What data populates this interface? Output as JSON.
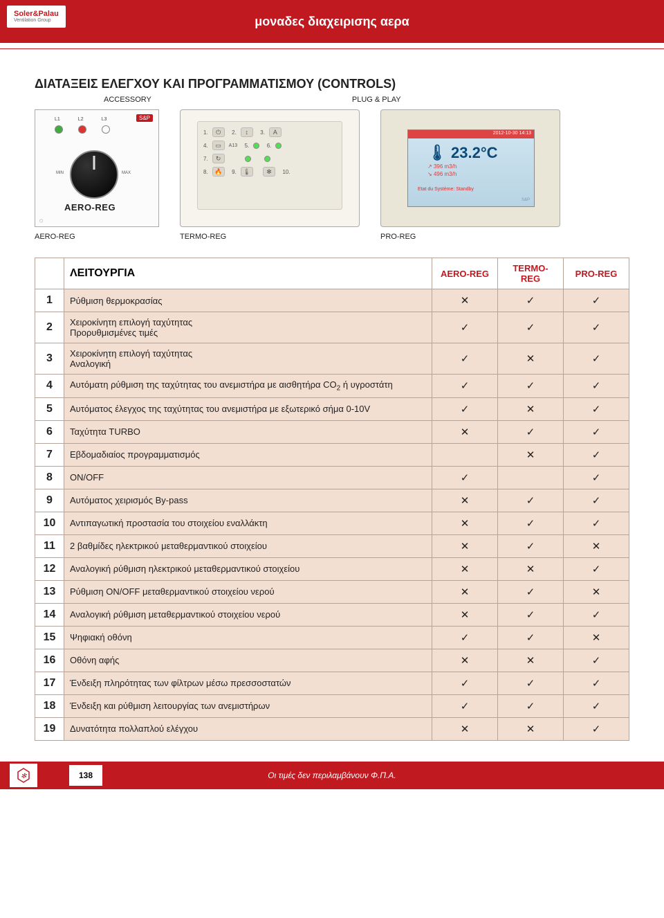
{
  "header": {
    "title": "μοναδες διαχειρισης αερα",
    "logo_line1": "Soler&Palau",
    "logo_line2": "Ventilation Group"
  },
  "section": {
    "title": "ΔΙΑΤΑΞΕΙΣ ΕΛΕΓΧΟΥ ΚΑΙ ΠΡΟΓΡΑΜΜΑΤΙΣΜΟΥ (CONTROLS)",
    "accessory_label": "ACCESSORY",
    "plugplay_label": "PLUG & PLAY"
  },
  "products": {
    "aero": {
      "label": "AERO-REG",
      "brand_text": "AERO-REG",
      "sp": "S&P",
      "leds": [
        "L1",
        "L2",
        "L3"
      ]
    },
    "termo": {
      "label": "TERMO-REG"
    },
    "pro": {
      "label": "PRO-REG",
      "screen": {
        "timestamp": "2012-10-30 14:13",
        "temp": "23.2°C",
        "l1": "396  m3/h",
        "l2": "496  m3/h",
        "btm": "Etat du Système: Standby",
        "corner": "S&P"
      }
    }
  },
  "table": {
    "headers": {
      "func": "ΛΕΙΤΟΥΡΓΙΑ",
      "c1": "AERO-REG",
      "c2": "TERMO-REG",
      "c3": "PRO-REG"
    },
    "rows": [
      {
        "n": "1",
        "desc": "Ρύθμιση θερμοκρασίας",
        "a": "✕",
        "b": "✓",
        "c": "✓"
      },
      {
        "n": "2",
        "desc": "Χειροκίνητη επιλογή ταχύτητας\nΠρορυθμισμένες τιμές",
        "a": "✓",
        "b": "✓",
        "c": "✓"
      },
      {
        "n": "3",
        "desc": "Χειροκίνητη επιλογή ταχύτητας\nΑναλογική",
        "a": "✓",
        "b": "✕",
        "c": "✓"
      },
      {
        "n": "4",
        "desc": "Αυτόματη ρύθμιση της ταχύτητας του ανεμιστήρα με αισθητήρα CO₂ ή υγροστάτη",
        "a": "✓",
        "b": "✓",
        "c": "✓"
      },
      {
        "n": "5",
        "desc": "Αυτόματος έλεγχος της ταχύτητας του ανεμιστήρα με εξωτερικό σήμα 0-10V",
        "a": "✓",
        "b": "✕",
        "c": "✓"
      },
      {
        "n": "6",
        "desc": "Ταχύτητα  TURBO",
        "a": "✕",
        "b": "✓",
        "c": "✓"
      },
      {
        "n": "7",
        "desc": "Εβδομαδιαίος προγραμματισμός",
        "a": "",
        "b": "✕",
        "c": "✓"
      },
      {
        "n": "8",
        "desc": "ON/OFF",
        "a": "✓",
        "b": "",
        "c": "✓"
      },
      {
        "n": "9",
        "desc": "Αυτόματος χειρισμός By-pass",
        "a": "✕",
        "b": "✓",
        "c": "✓"
      },
      {
        "n": "10",
        "desc": "Αντιπαγωτική προστασία του στοιχείου εναλλάκτη",
        "a": "✕",
        "b": "✓",
        "c": "✓"
      },
      {
        "n": "11",
        "desc": "2 βαθμίδες ηλεκτρικού μεταθερμαντικού στοιχείου",
        "a": "✕",
        "b": "✓",
        "c": "✕"
      },
      {
        "n": "12",
        "desc": "Αναλογική ρύθμιση ηλεκτρικού μεταθερμαντικού στοιχείου",
        "a": "✕",
        "b": "✕",
        "c": "✓"
      },
      {
        "n": "13",
        "desc": "Ρύθμιση ON/OFF μεταθερμαντικού στοιχείου νερού",
        "a": "✕",
        "b": "✓",
        "c": "✕"
      },
      {
        "n": "14",
        "desc": "Αναλογική  ρύθμιση μεταθερμαντικού στοιχείου νερού",
        "a": "✕",
        "b": "✓",
        "c": "✓"
      },
      {
        "n": "15",
        "desc": "Ψηφιακή οθόνη",
        "a": "✓",
        "b": "✓",
        "c": "✕"
      },
      {
        "n": "16",
        "desc": "Οθόνη αφής",
        "a": "✕",
        "b": "✕",
        "c": "✓"
      },
      {
        "n": "17",
        "desc": "Ένδειξη πληρότητας των φίλτρων μέσω πρεσσοστατών",
        "a": "✓",
        "b": "✓",
        "c": "✓"
      },
      {
        "n": "18",
        "desc": "Ένδειξη και ρύθμιση λειτουργίας των ανεμιστήρων",
        "a": "✓",
        "b": "✓",
        "c": "✓"
      },
      {
        "n": "19",
        "desc": "Δυνατότητα πολλαπλού ελέγχου",
        "a": "✕",
        "b": "✕",
        "c": "✓"
      }
    ]
  },
  "footer": {
    "page": "138",
    "note": "Οι τιμές δεν περιλαμβάνουν Φ.Π.Α."
  },
  "colors": {
    "brand_red": "#c01920",
    "table_bg": "#f3ded2",
    "border": "#b5a399"
  }
}
